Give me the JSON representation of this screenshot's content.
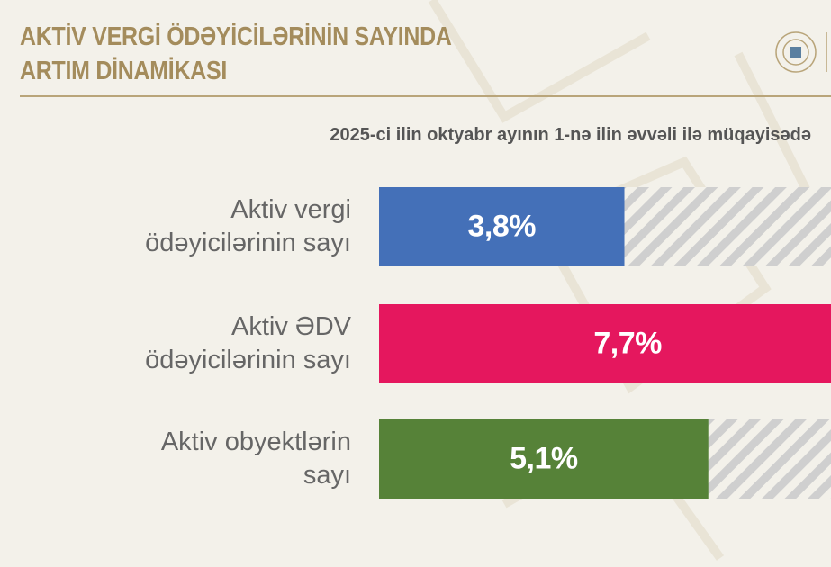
{
  "chart_data": {
    "type": "bar",
    "orientation": "horizontal",
    "title": "AKTİV VERGİ ÖDƏYİCİLƏRİNİN SAYINDA\nARTIM DİNAMİKASI",
    "subtitle": "2025-ci ilin oktyabr ayının 1-nə ilin əvvəli ilə müqayisədə",
    "categories": [
      "Aktiv vergi\nödəyicilərinin sayı",
      "Aktiv ƏDV\nödəyicilərinin sayı",
      "Aktiv obyektlərin\nsayı"
    ],
    "values": [
      3.8,
      7.7,
      5.1
    ],
    "value_labels": [
      "3,8%",
      "7,7%",
      "5,1%"
    ],
    "colors": [
      "#4470b8",
      "#e5175e",
      "#568238"
    ],
    "xlim": [
      0,
      7
    ]
  }
}
